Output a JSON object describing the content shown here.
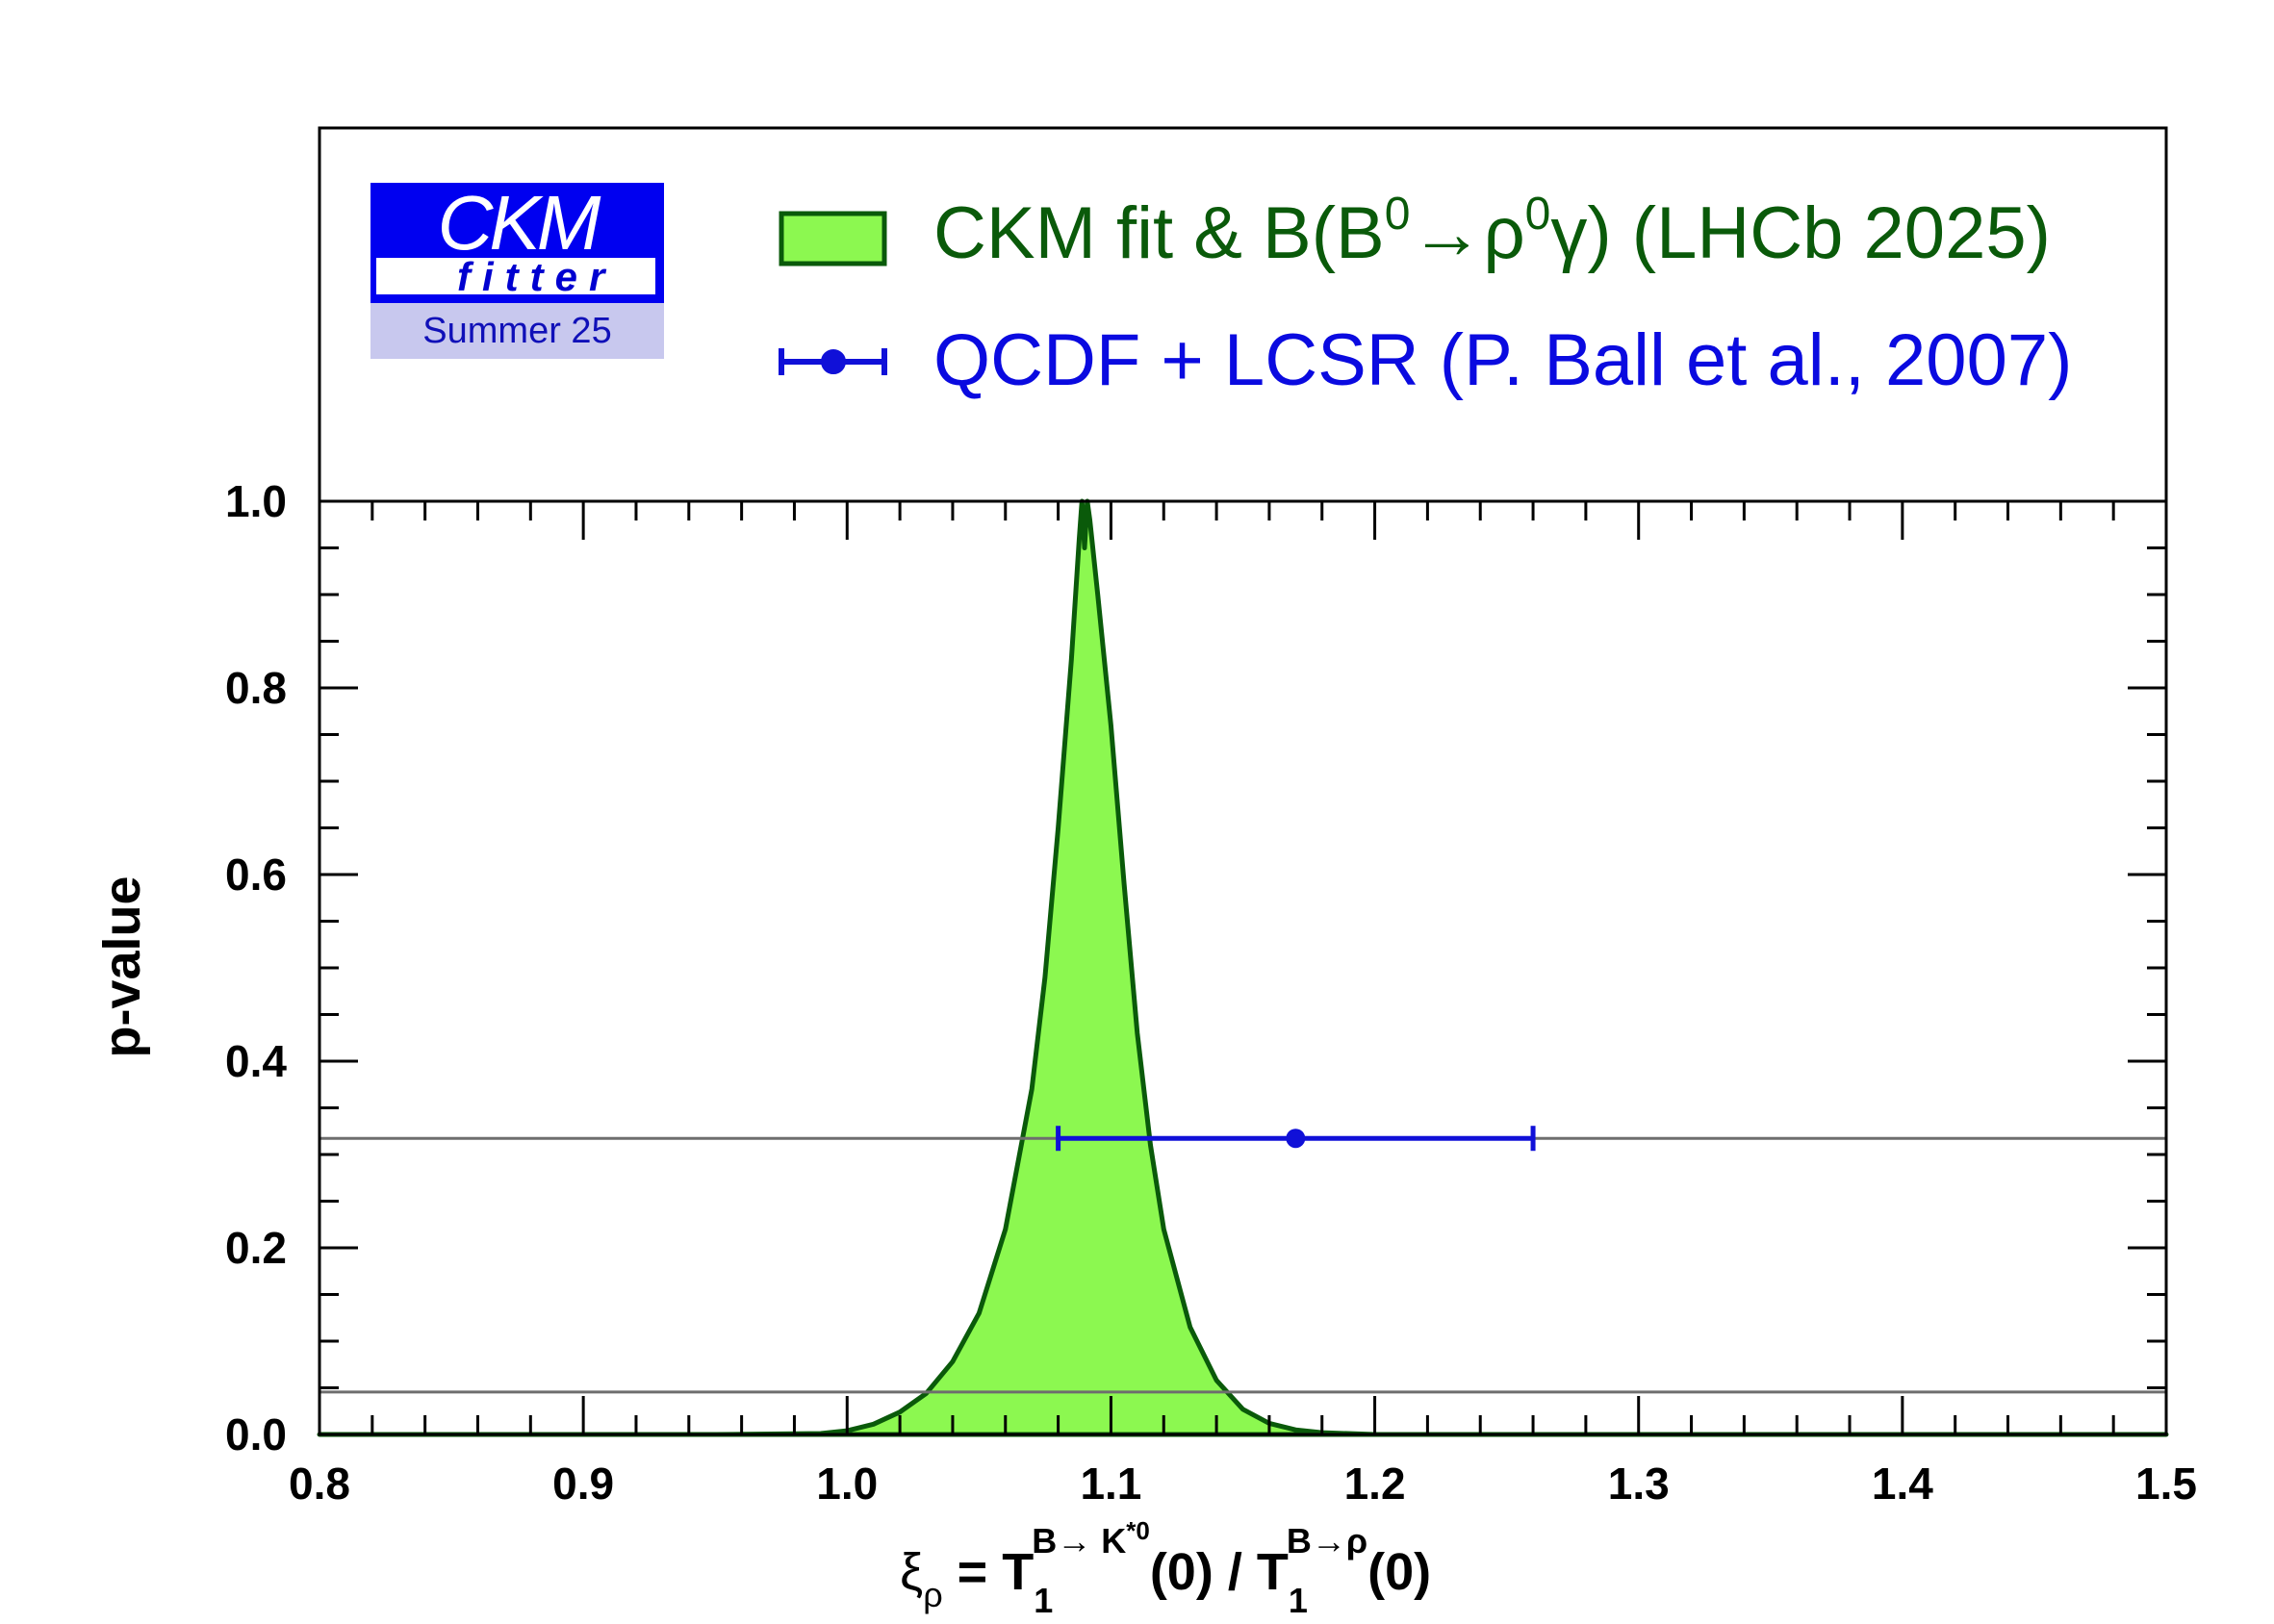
{
  "logo": {
    "ckm": "CKM",
    "fitter": "fitter",
    "edition": "Summer 25"
  },
  "legend": {
    "fit_label_prefix": "CKM fit & B(B",
    "fit_label_sup1": "0",
    "fit_label_mid": "→ρ",
    "fit_label_sup2": "0",
    "fit_label_suffix": "γ) (LHCb 2025)",
    "theory_label": "QCDF + LCSR (P. Ball et al., 2007)"
  },
  "colors": {
    "fill": "#8cf850",
    "outline": "#0a5a0a",
    "theory": "#1010d8",
    "fit_text": "#0a5a0a",
    "theory_text": "#0a0ae0",
    "cl_lines": "#6e6e6e"
  },
  "chart_data": {
    "type": "area",
    "title": "",
    "xlabel": "ξ_ρ = T_1^{B→K*0}(0) / T_1^{B→ρ}(0)",
    "xlabel_parts": {
      "xi": "ξ",
      "xi_sub": "ρ",
      "eq": " = T",
      "t1_sub": "1",
      "t1_sup": "B→ K",
      "t1_sup_star": "*0",
      "mid": "(0) / T",
      "t2_sub": "1",
      "t2_sup": "B→ρ",
      "end": "(0)"
    },
    "ylabel": "p-value",
    "xlim": [
      0.8,
      1.5
    ],
    "ylim": [
      0.0,
      1.0
    ],
    "x_ticks": [
      "0.8",
      "0.9",
      "1.0",
      "1.1",
      "1.2",
      "1.3",
      "1.4",
      "1.5"
    ],
    "y_ticks": [
      "0.0",
      "0.2",
      "0.4",
      "0.6",
      "0.8",
      "1.0"
    ],
    "grid": false,
    "series": [
      {
        "name": "CKM fit & B(B0→ρ0γ) (LHCb 2025)",
        "kind": "filled-curve",
        "x": [
          0.8,
          0.95,
          0.99,
          1.0,
          1.01,
          1.02,
          1.03,
          1.04,
          1.05,
          1.06,
          1.07,
          1.075,
          1.08,
          1.085,
          1.088,
          1.089,
          1.09,
          1.091,
          1.092,
          1.095,
          1.1,
          1.105,
          1.11,
          1.115,
          1.12,
          1.13,
          1.14,
          1.15,
          1.16,
          1.17,
          1.18,
          1.2,
          1.3,
          1.5
        ],
        "y": [
          0.0,
          0.0,
          0.001,
          0.004,
          0.011,
          0.024,
          0.044,
          0.078,
          0.13,
          0.22,
          0.37,
          0.49,
          0.65,
          0.83,
          0.96,
          1.0,
          0.95,
          1.0,
          0.98,
          0.9,
          0.76,
          0.59,
          0.43,
          0.31,
          0.22,
          0.115,
          0.058,
          0.027,
          0.012,
          0.005,
          0.002,
          0.0,
          0.0,
          0.0
        ]
      },
      {
        "name": "QCDF + LCSR (P. Ball et al., 2007)",
        "kind": "errorbar",
        "x": 1.17,
        "xerr_low": 0.09,
        "xerr_high": 0.09,
        "y": 0.3173
      }
    ],
    "reference_lines": [
      0.3173,
      0.0455
    ]
  }
}
